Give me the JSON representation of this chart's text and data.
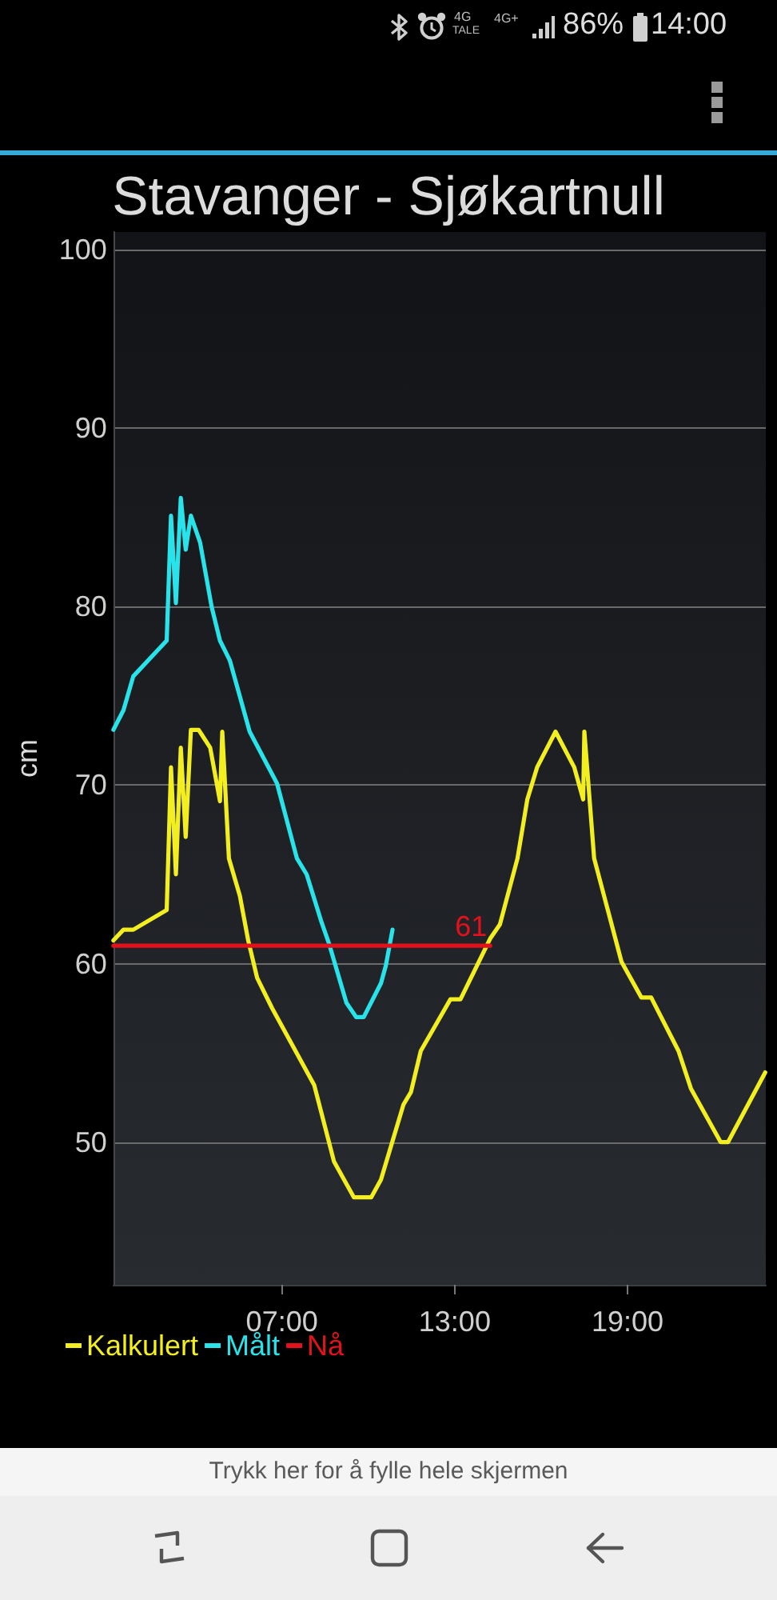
{
  "chart_data": {
    "type": "line",
    "title": "Stavanger - Sjøkartnull",
    "ylabel": "cm",
    "annotations": [
      "4G",
      "TALE",
      "4G+",
      "86%",
      "14:00",
      "Trykk her for å fylle hele skjermen"
    ],
    "xlim": [
      1.15,
      23.8
    ],
    "xticks": [
      {
        "value": 7,
        "label": "07:00"
      },
      {
        "value": 13,
        "label": "13:00"
      },
      {
        "value": 19,
        "label": "19:00"
      }
    ],
    "ylim": [
      42,
      101
    ],
    "yticks": [
      50,
      60,
      70,
      80,
      90,
      100
    ],
    "grid": "y",
    "legend": "bottom left",
    "marker": "none",
    "line_style": "solid",
    "series": [
      {
        "name": "Kalkulert",
        "color": "#f2ee1f",
        "x": [
          1.15,
          1.5,
          1.84,
          3.0,
          3.15,
          3.32,
          3.49,
          3.66,
          3.84,
          4.11,
          4.51,
          4.85,
          4.93,
          5.16,
          5.54,
          5.83,
          6.14,
          6.66,
          8.12,
          8.81,
          9.5,
          10.1,
          10.44,
          11.22,
          11.48,
          11.82,
          12.85,
          13.2,
          14.23,
          14.57,
          15.18,
          15.52,
          15.86,
          16.5,
          17.15,
          17.46,
          17.5,
          17.84,
          18.79,
          19.48,
          19.82,
          20.77,
          21.2,
          22.23,
          22.49,
          23.78
        ],
        "values": [
          61.3,
          61.9,
          61.9,
          63.0,
          71.0,
          65.0,
          72.1,
          67.1,
          73.1,
          73.1,
          72.1,
          69.1,
          73.0,
          65.9,
          63.8,
          61.3,
          59.2,
          57.5,
          53.2,
          48.9,
          46.9,
          46.9,
          47.9,
          52.1,
          52.8,
          55.1,
          58.0,
          58.0,
          61.4,
          62.2,
          65.9,
          69.2,
          71.0,
          73.0,
          71.0,
          69.2,
          73.0,
          65.9,
          60.1,
          58.1,
          58.1,
          55.1,
          53.0,
          50.0,
          50.0,
          53.9
        ]
      },
      {
        "name": "Målt",
        "color": "#29e3ea",
        "x": [
          1.15,
          1.5,
          1.84,
          3.0,
          3.15,
          3.32,
          3.49,
          3.66,
          3.84,
          4.16,
          4.56,
          4.85,
          5.19,
          5.88,
          6.83,
          7.52,
          7.86,
          8.38,
          8.64,
          9.24,
          9.58,
          9.84,
          10.44,
          10.61,
          10.84
        ],
        "values": [
          73.1,
          74.2,
          76.1,
          78.1,
          85.1,
          80.2,
          86.1,
          83.2,
          85.1,
          83.6,
          80.0,
          78.1,
          77.0,
          73.0,
          70.1,
          65.9,
          65.0,
          62.3,
          61.1,
          57.8,
          57.0,
          57.0,
          58.9,
          59.9,
          61.9
        ]
      },
      {
        "name": "Nå",
        "color": "#e3111b",
        "x": [
          1.15,
          14.23
        ],
        "values": [
          61,
          61
        ],
        "value_labels": [
          null,
          "61"
        ]
      }
    ]
  }
}
